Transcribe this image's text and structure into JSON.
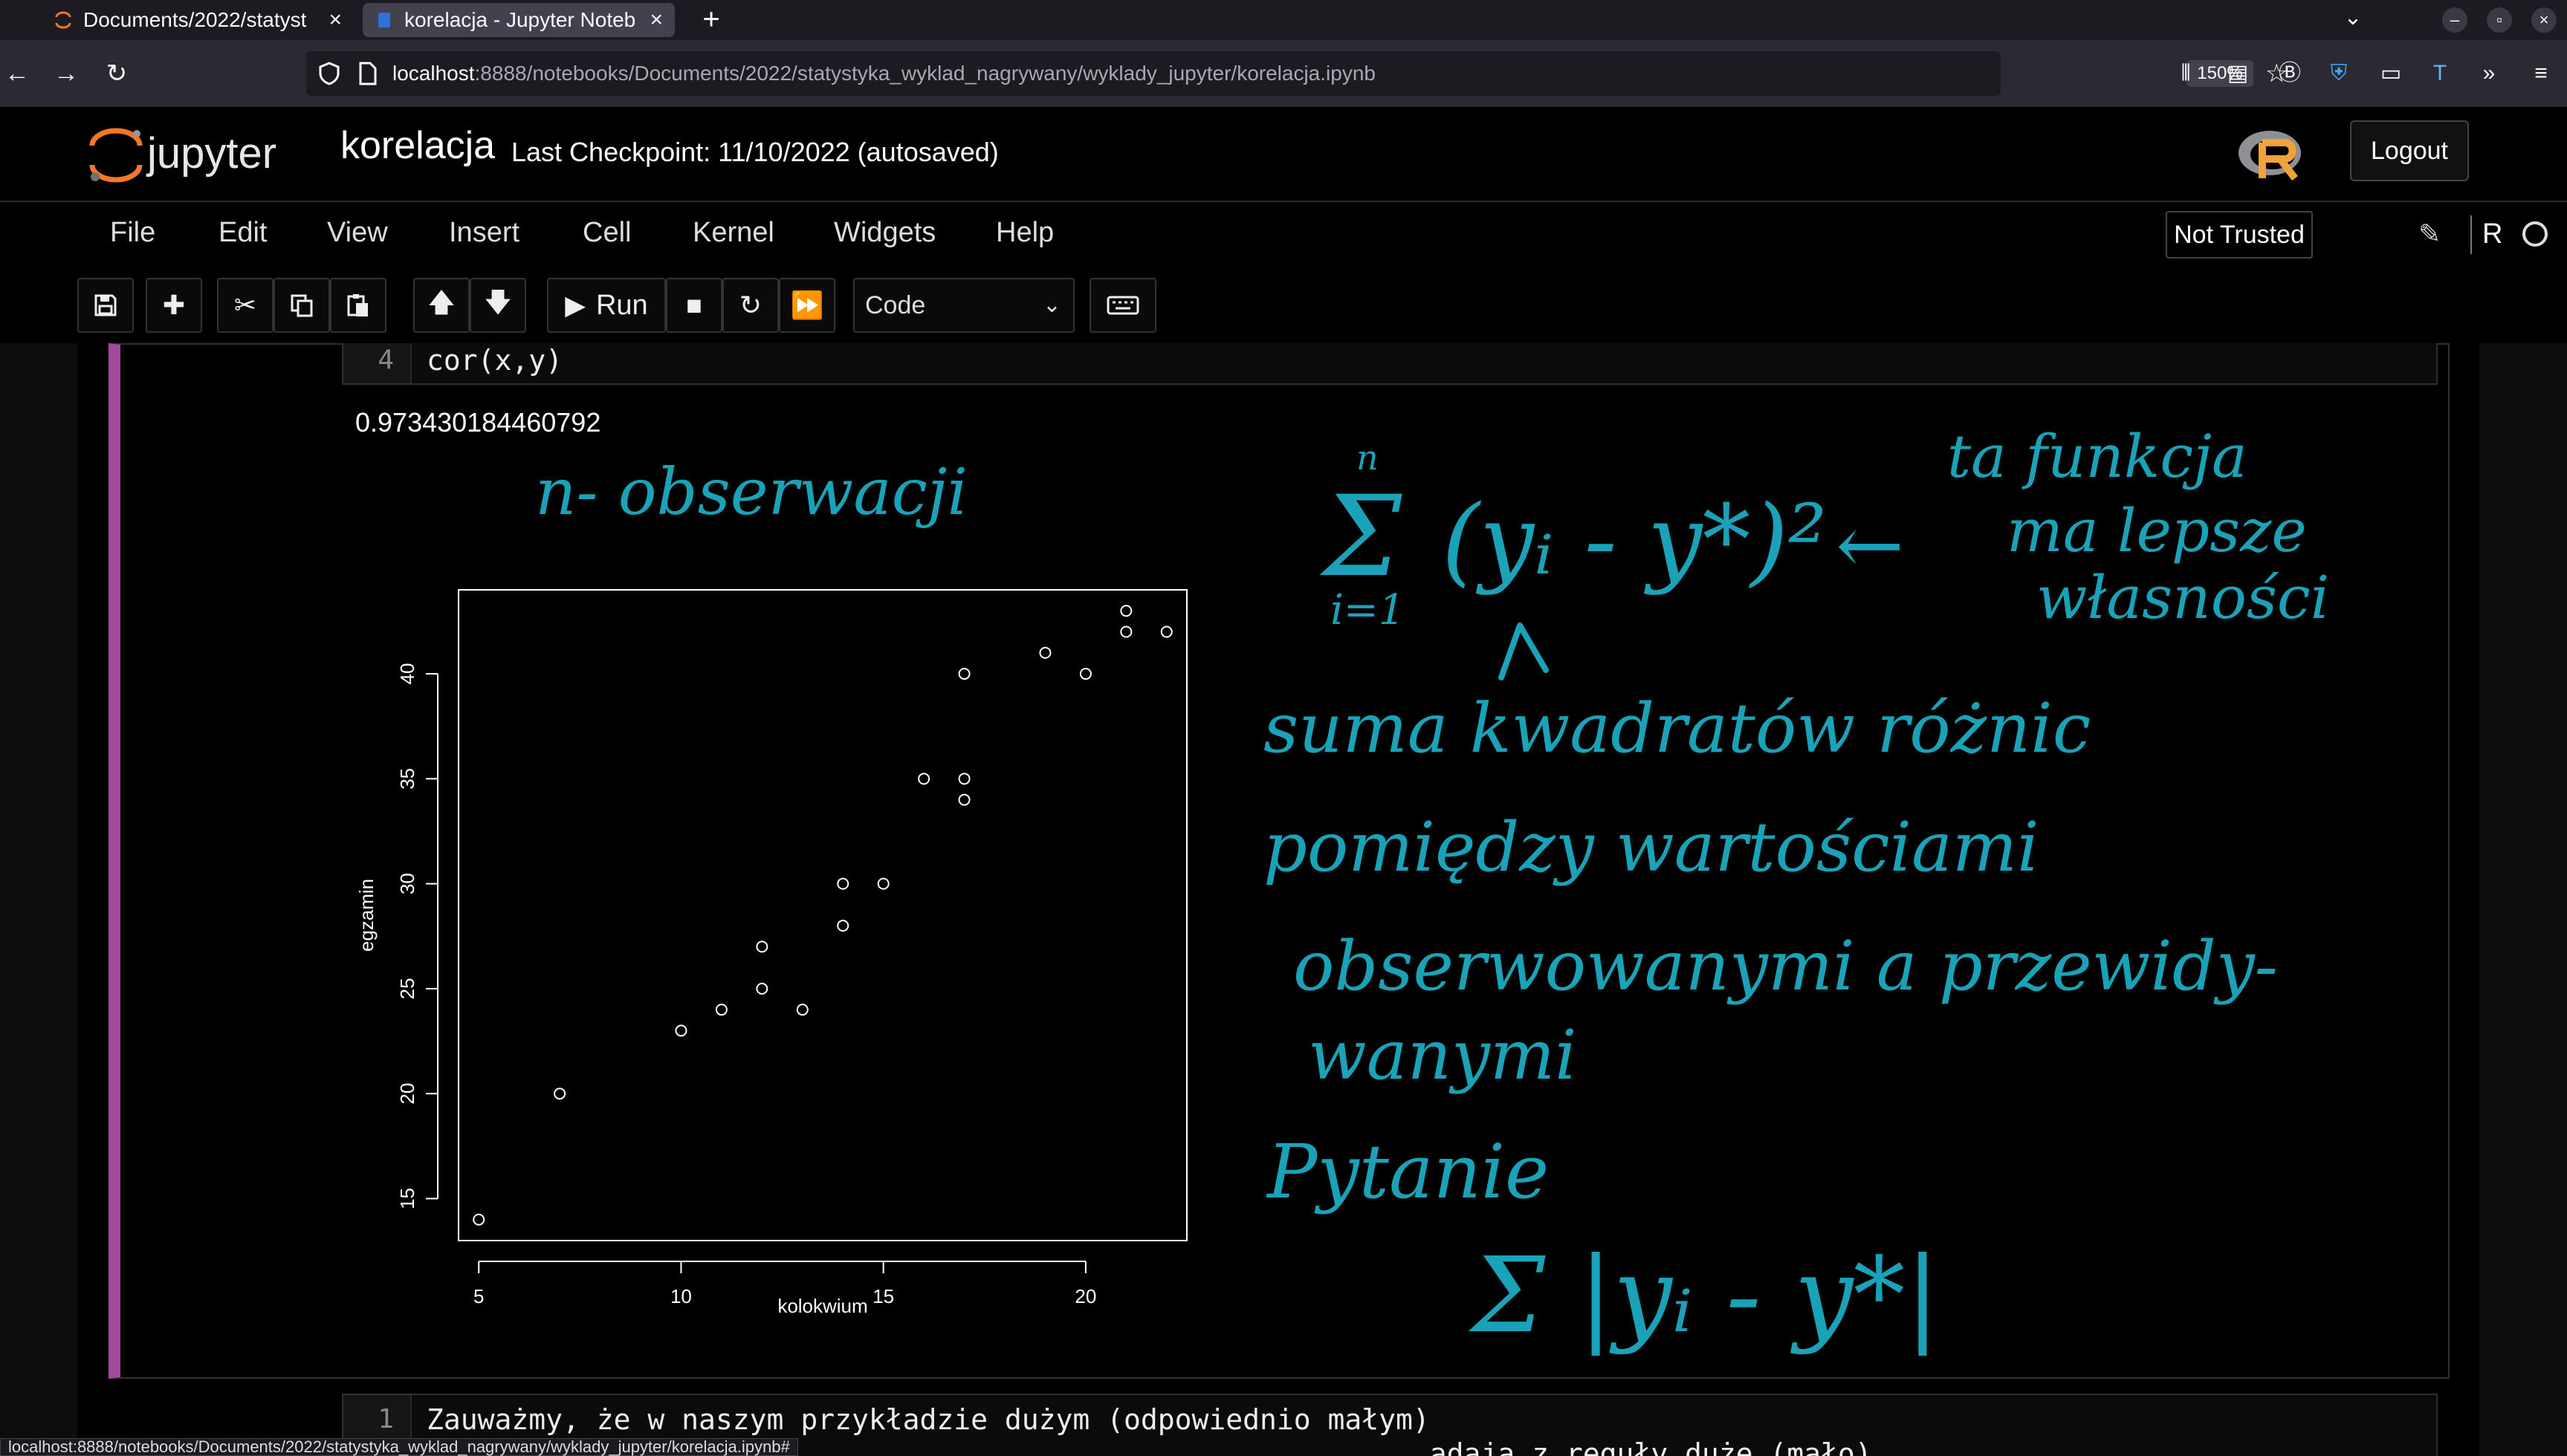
{
  "browser": {
    "tabs": [
      {
        "title": "Documents/2022/statyst",
        "active": false
      },
      {
        "title": "korelacja - Jupyter Noteb",
        "active": true
      }
    ],
    "url_host": "localhost",
    "url_path": ":8888/notebooks/Documents/2022/statystyka_wyklad_nagrywany/wyklady_jupyter/korelacja.ipynb",
    "zoom": "150%",
    "status_url": "localhost:8888/notebooks/Documents/2022/statystyka_wyklad_nagrywany/wyklady_jupyter/korelacja.ipynb#"
  },
  "jupyter": {
    "logo_text": "jupyter",
    "notebook_name": "korelacja",
    "checkpoint": "Last Checkpoint: 11/10/2022  (autosaved)",
    "logout": "Logout",
    "menu": [
      "File",
      "Edit",
      "View",
      "Insert",
      "Cell",
      "Kernel",
      "Widgets",
      "Help"
    ],
    "not_trusted": "Not Trusted",
    "kernel": "R",
    "toolbar": {
      "run": "Run",
      "cell_type": "Code"
    }
  },
  "cell1": {
    "line_no": "4",
    "code": "cor(x,y)",
    "output": "0.973430184460792"
  },
  "cell2": {
    "line_no": "1",
    "code": "Zauważmy, że w naszym przykładzie dużym (odpowiednio małym)\n                                                           adaja z reguły duże (mało)"
  },
  "chart_data": {
    "type": "scatter",
    "xlabel": "kolokwium",
    "ylabel": "egzamin",
    "xlim": [
      4.5,
      22.5
    ],
    "ylim": [
      13,
      44
    ],
    "x_ticks": [
      5,
      10,
      15,
      20
    ],
    "y_ticks": [
      15,
      20,
      25,
      30,
      35,
      40
    ],
    "points": [
      [
        5,
        14
      ],
      [
        7,
        20
      ],
      [
        10,
        23
      ],
      [
        11,
        24
      ],
      [
        12,
        25
      ],
      [
        12,
        27
      ],
      [
        13,
        24
      ],
      [
        14,
        28
      ],
      [
        14,
        30
      ],
      [
        15,
        30
      ],
      [
        16,
        35
      ],
      [
        17,
        34
      ],
      [
        17,
        35
      ],
      [
        17,
        40
      ],
      [
        19,
        41
      ],
      [
        20,
        40
      ],
      [
        21,
        42
      ],
      [
        21,
        43
      ],
      [
        22,
        42
      ]
    ]
  },
  "handwriting": {
    "n_obs": "n- obserwacji",
    "sum_top": "n",
    "sum_bottom": "i=1",
    "sum_body": "(yᵢ - y*)²",
    "arrow": "←",
    "note1": "ta funkcja",
    "note2": "ma lepsze",
    "note3": "własności",
    "line1": "suma kwadratów różnic",
    "line2": "pomiędzy wartościami",
    "line3": "obserwowanymi a przewidy-",
    "line4": "wanymi",
    "question": "Pytanie",
    "formula2": "Σ |yᵢ - y*|"
  },
  "colors": {
    "cell_selected": "#a5499b",
    "ink": "#1aa3b8"
  }
}
